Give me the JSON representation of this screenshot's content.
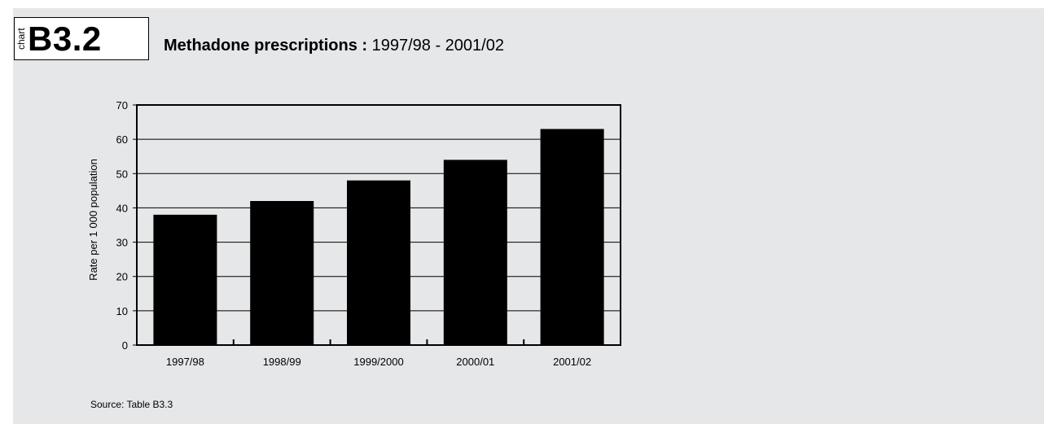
{
  "header": {
    "chart_word": "chart",
    "chart_id": "B3.2",
    "title_bold": "Methadone prescriptions :",
    "title_rest": "1997/98 - 2001/02"
  },
  "source": "Source: Table B3.3",
  "colors": {
    "background": "#e6e7e8",
    "bar": "#000000"
  },
  "chart_data": {
    "type": "bar",
    "categories": [
      "1997/98",
      "1998/99",
      "1999/2000",
      "2000/01",
      "2001/02"
    ],
    "values": [
      38,
      42,
      48,
      54,
      63
    ],
    "title": "Methadone prescriptions : 1997/98 - 2001/02",
    "xlabel": "",
    "ylabel": "Rate per 1 000 population",
    "ylim": [
      0,
      70
    ],
    "yticks": [
      0,
      10,
      20,
      30,
      40,
      50,
      60,
      70
    ],
    "grid": true
  }
}
